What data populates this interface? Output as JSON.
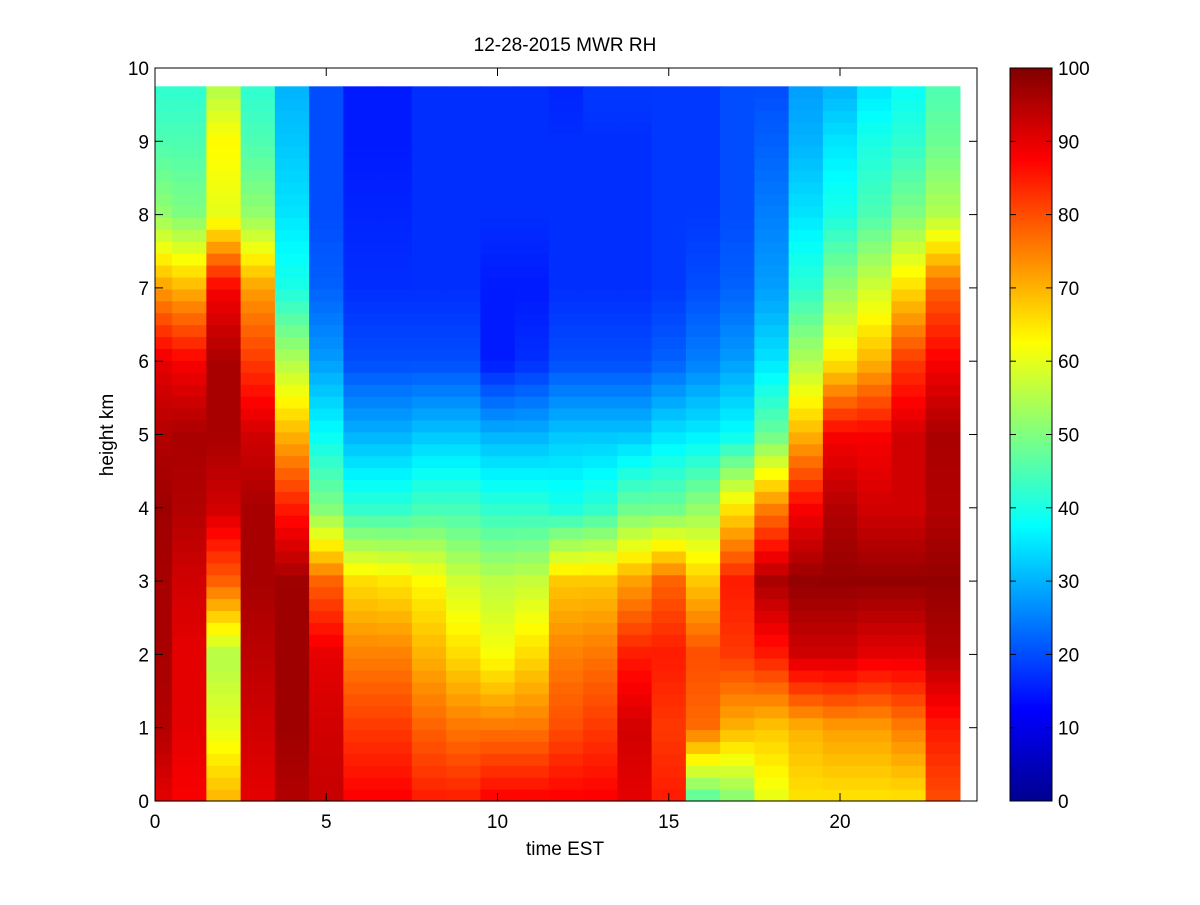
{
  "chart_data": {
    "type": "heatmap",
    "title": "12-28-2015 MWR RH",
    "xlabel": "time EST",
    "ylabel": "height km",
    "xlim": [
      0,
      24
    ],
    "ylim": [
      0,
      10
    ],
    "x_ticks": [
      0,
      5,
      10,
      15,
      20
    ],
    "y_ticks": [
      0,
      1,
      2,
      3,
      4,
      5,
      6,
      7,
      8,
      9,
      10
    ],
    "colorbar": {
      "range": [
        0,
        100
      ],
      "ticks": [
        0,
        10,
        20,
        30,
        40,
        50,
        60,
        70,
        80,
        90,
        100
      ],
      "colormap": "jet"
    },
    "grid": false,
    "x_edges": [
      0,
      0.5,
      1.5,
      2.5,
      3.5,
      4.5,
      5.5,
      6.5,
      7.5,
      8.5,
      9.5,
      10.5,
      11.5,
      12.5,
      13.5,
      14.5,
      15.5,
      16.5,
      17.5,
      18.5,
      19.5,
      20.5,
      21.5,
      22.5,
      23.5
    ],
    "height_profile_km": [
      0,
      1,
      2,
      3,
      4,
      5,
      6,
      7,
      8,
      9,
      9.75
    ],
    "rh_profiles": [
      [
        90,
        95,
        96,
        96,
        97,
        95,
        90,
        72,
        52,
        45,
        42
      ],
      [
        88,
        90,
        90,
        92,
        95,
        96,
        88,
        70,
        50,
        45,
        42
      ],
      [
        70,
        60,
        55,
        78,
        92,
        96,
        96,
        88,
        60,
        63,
        55
      ],
      [
        90,
        92,
        94,
        96,
        96,
        92,
        82,
        72,
        52,
        45,
        42
      ],
      [
        95,
        97,
        97,
        97,
        85,
        70,
        55,
        40,
        35,
        32,
        30
      ],
      [
        93,
        92,
        90,
        78,
        50,
        38,
        28,
        22,
        20,
        20,
        20
      ],
      [
        88,
        82,
        75,
        66,
        42,
        30,
        20,
        17,
        16,
        15,
        15
      ],
      [
        88,
        82,
        75,
        65,
        42,
        30,
        20,
        17,
        16,
        15,
        15
      ],
      [
        85,
        78,
        70,
        63,
        44,
        32,
        20,
        17,
        17,
        17,
        17
      ],
      [
        85,
        76,
        66,
        58,
        44,
        32,
        20,
        17,
        17,
        17,
        17
      ],
      [
        88,
        76,
        62,
        56,
        42,
        30,
        15,
        15,
        17,
        17,
        17
      ],
      [
        88,
        76,
        66,
        57,
        42,
        30,
        17,
        15,
        17,
        17,
        17
      ],
      [
        88,
        80,
        75,
        68,
        40,
        32,
        20,
        17,
        17,
        17,
        16
      ],
      [
        88,
        82,
        76,
        68,
        42,
        32,
        20,
        17,
        17,
        17,
        18
      ],
      [
        90,
        92,
        85,
        72,
        48,
        32,
        20,
        17,
        17,
        17,
        18
      ],
      [
        85,
        82,
        85,
        78,
        48,
        35,
        22,
        18,
        18,
        18,
        18
      ],
      [
        45,
        77,
        80,
        68,
        52,
        36,
        25,
        20,
        18,
        18,
        18
      ],
      [
        50,
        70,
        82,
        85,
        65,
        38,
        28,
        22,
        20,
        20,
        20
      ],
      [
        60,
        68,
        85,
        96,
        75,
        48,
        35,
        28,
        25,
        22,
        20
      ],
      [
        65,
        70,
        92,
        98,
        88,
        70,
        55,
        42,
        35,
        30,
        28
      ],
      [
        65,
        72,
        92,
        98,
        95,
        88,
        65,
        52,
        40,
        35,
        30
      ],
      [
        65,
        72,
        90,
        98,
        92,
        88,
        70,
        58,
        45,
        40,
        35
      ],
      [
        65,
        75,
        90,
        98,
        92,
        92,
        82,
        66,
        50,
        42,
        38
      ],
      [
        80,
        85,
        95,
        98,
        95,
        96,
        88,
        78,
        55,
        48,
        45
      ]
    ]
  }
}
